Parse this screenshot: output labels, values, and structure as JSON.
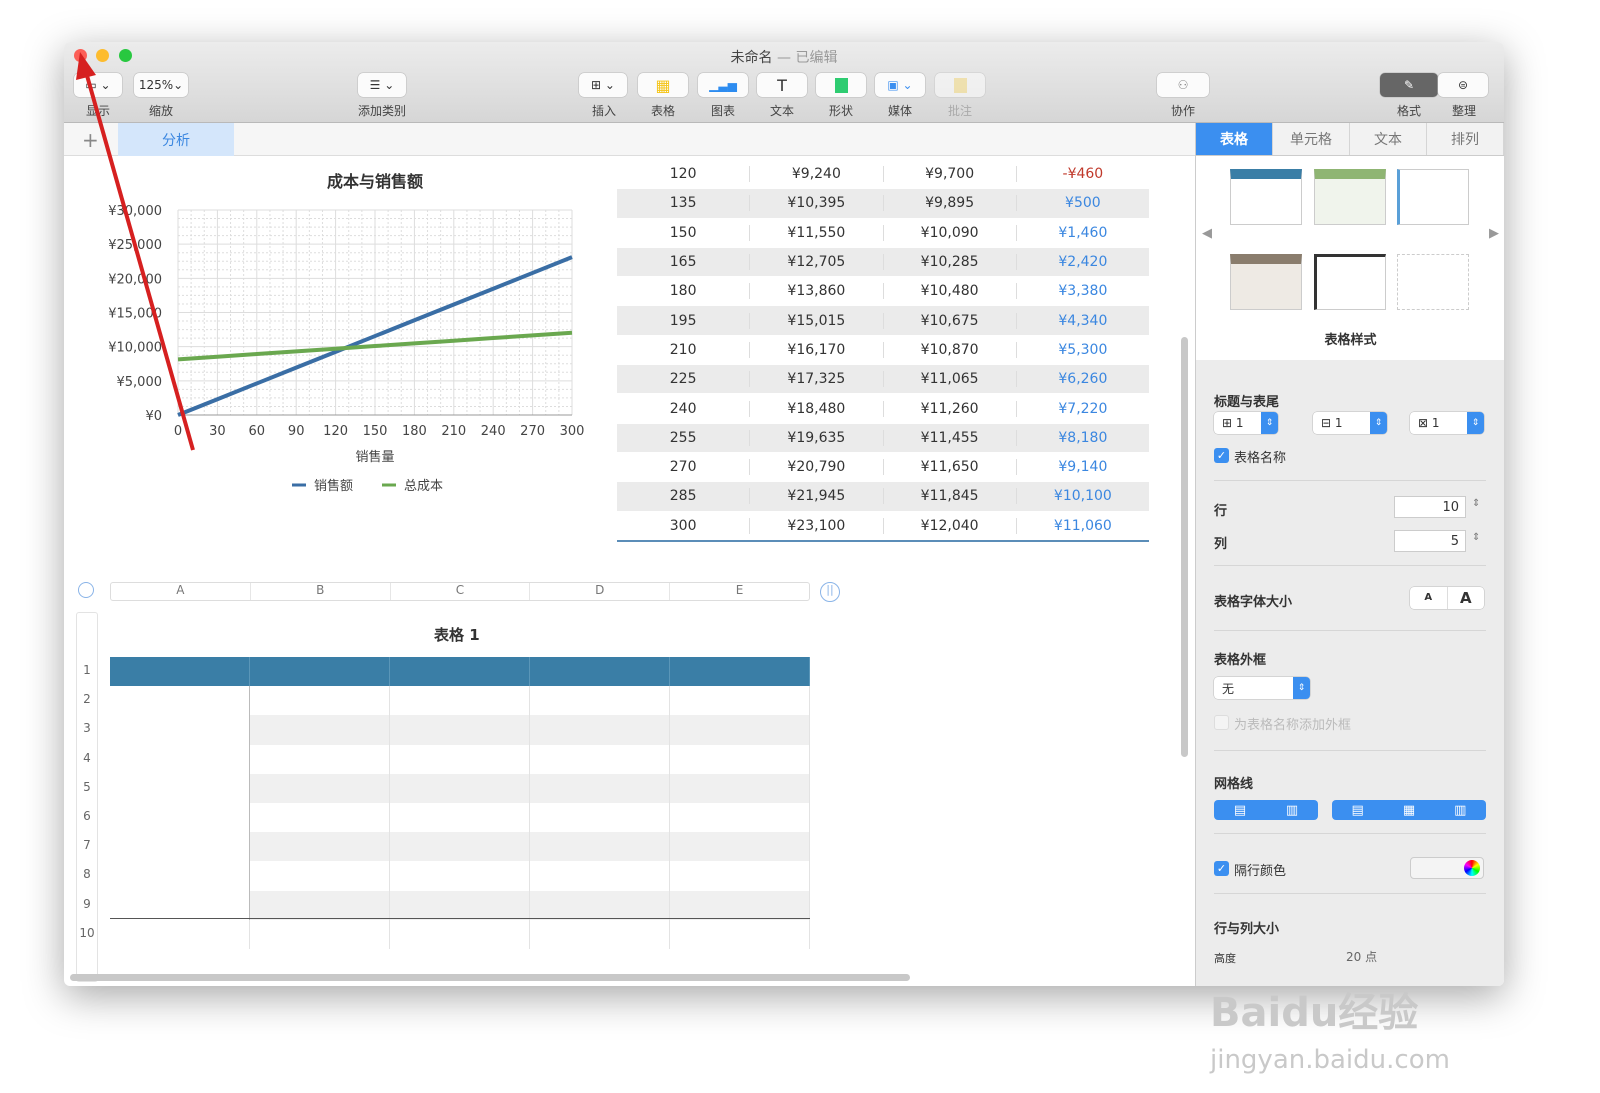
{
  "window": {
    "title": "未命名",
    "status": "— 已编辑"
  },
  "toolbar": {
    "items": [
      {
        "label": "显示",
        "icon": "view-icon"
      },
      {
        "label": "缩放",
        "value": "125%"
      },
      {
        "label": "添加类别",
        "icon": "list-icon"
      },
      {
        "label": "插入",
        "icon": "insert-icon"
      },
      {
        "label": "表格",
        "icon": "table-icon"
      },
      {
        "label": "图表",
        "icon": "chart-icon"
      },
      {
        "label": "文本",
        "icon": "text-icon"
      },
      {
        "label": "形状",
        "icon": "shape-icon"
      },
      {
        "label": "媒体",
        "icon": "media-icon"
      },
      {
        "label": "批注",
        "icon": "comment-icon"
      },
      {
        "label": "协作",
        "icon": "collaborate-icon"
      },
      {
        "label": "格式",
        "icon": "format-brush-icon"
      },
      {
        "label": "整理",
        "icon": "organize-icon"
      }
    ]
  },
  "sheet_tabs": {
    "add": "+",
    "items": [
      "分析"
    ]
  },
  "chart_data": {
    "type": "line",
    "title": "成本与销售额",
    "xlabel": "销售量",
    "ylabel": "",
    "x": [
      0,
      30,
      60,
      90,
      120,
      150,
      180,
      210,
      240,
      270,
      300
    ],
    "xticks": [
      "0",
      "30",
      "60",
      "90",
      "120",
      "150",
      "180",
      "210",
      "240",
      "270",
      "300"
    ],
    "yticks": [
      "¥0",
      "¥5,000",
      "¥10,000",
      "¥15,000",
      "¥20,000",
      "¥25,000",
      "¥30,000"
    ],
    "ylim": [
      0,
      30000
    ],
    "xlim": [
      0,
      300
    ],
    "grid": true,
    "legend": "bottom",
    "series": [
      {
        "name": "销售额",
        "color": "#3a6ea5",
        "values": [
          0,
          2310,
          4620,
          6930,
          9240,
          11550,
          13860,
          16170,
          18480,
          20790,
          23100
        ]
      },
      {
        "name": "总成本",
        "color": "#6aa84f",
        "values": [
          8140,
          8530,
          8920,
          9310,
          9700,
          10090,
          10480,
          10870,
          11260,
          11650,
          12040
        ]
      }
    ]
  },
  "data_table": {
    "rows": [
      [
        "120",
        "¥9,240",
        "¥9,700",
        "-¥460"
      ],
      [
        "135",
        "¥10,395",
        "¥9,895",
        "¥500"
      ],
      [
        "150",
        "¥11,550",
        "¥10,090",
        "¥1,460"
      ],
      [
        "165",
        "¥12,705",
        "¥10,285",
        "¥2,420"
      ],
      [
        "180",
        "¥13,860",
        "¥10,480",
        "¥3,380"
      ],
      [
        "195",
        "¥15,015",
        "¥10,675",
        "¥4,340"
      ],
      [
        "210",
        "¥16,170",
        "¥10,870",
        "¥5,300"
      ],
      [
        "225",
        "¥17,325",
        "¥11,065",
        "¥6,260"
      ],
      [
        "240",
        "¥18,480",
        "¥11,260",
        "¥7,220"
      ],
      [
        "255",
        "¥19,635",
        "¥11,455",
        "¥8,180"
      ],
      [
        "270",
        "¥20,790",
        "¥11,650",
        "¥9,140"
      ],
      [
        "285",
        "¥21,945",
        "¥11,845",
        "¥10,100"
      ],
      [
        "300",
        "¥23,100",
        "¥12,040",
        "¥11,060"
      ]
    ],
    "negative_color": "#c0392b",
    "positive_color": "#3b87e0"
  },
  "table1": {
    "title": "表格 1",
    "columns": [
      "A",
      "B",
      "C",
      "D",
      "E"
    ],
    "rows": [
      "1",
      "2",
      "3",
      "4",
      "5",
      "6",
      "7",
      "8",
      "9",
      "10"
    ],
    "header_color": "#3a7ea6"
  },
  "sidebar": {
    "tabs": [
      "表格",
      "单元格",
      "文本",
      "排列"
    ],
    "styles_label": "表格样式",
    "header_footer": {
      "label": "标题与表尾",
      "values": [
        "1",
        "1",
        "1"
      ]
    },
    "table_name": {
      "label": "表格名称",
      "checked": true
    },
    "rows": {
      "label": "行",
      "value": "10"
    },
    "cols": {
      "label": "列",
      "value": "5"
    },
    "font_size": {
      "label": "表格字体大小",
      "small": "A",
      "large": "A"
    },
    "outline": {
      "label": "表格外框",
      "value": "无",
      "name_outline": "为表格名称添加外框"
    },
    "gridlines": {
      "label": "网格线"
    },
    "alternate": {
      "label": "隔行颜色",
      "checked": true
    },
    "row_col_size": {
      "label": "行与列大小",
      "height_label": "高度",
      "height_value": "20 点"
    }
  },
  "watermark": {
    "text": "Baidu经验",
    "url": "jingyan.baidu.com"
  }
}
